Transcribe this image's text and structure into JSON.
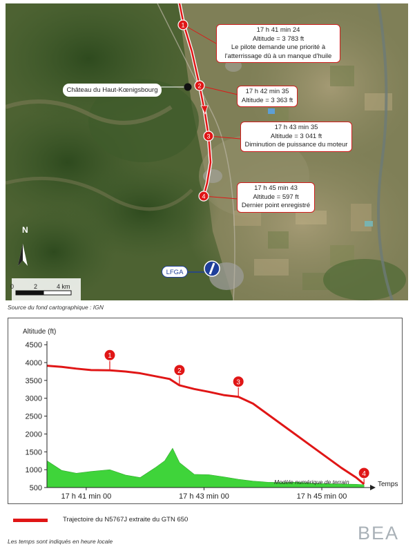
{
  "map": {
    "castle_label": "Château du Haut-Kœnigsbourg",
    "airport_label": "LFGA",
    "north_label": "N",
    "scale_labels": [
      "0",
      "2",
      "4 km"
    ],
    "source": "Source du fond cartographique : IGN",
    "waypoints": [
      {
        "num": "1",
        "lines": [
          "17 h 41 min 24",
          "Altitude = 3 783 ft",
          "Le pilote demande une priorité à",
          "l'atterrissage dû à un manque d'huile"
        ]
      },
      {
        "num": "2",
        "lines": [
          "17 h 42 min 35",
          "Altitude = 3 363 ft"
        ]
      },
      {
        "num": "3",
        "lines": [
          "17 h 43 min 35",
          "Altitude = 3 041 ft",
          "Diminution de puissance du moteur"
        ]
      },
      {
        "num": "4",
        "lines": [
          "17 h 45 min 43",
          "Altitude = 597 ft",
          "Dernier point enregistré"
        ]
      }
    ],
    "colors": {
      "track": "#e01616",
      "airport": "#1f3f9a"
    }
  },
  "chart_data": {
    "type": "line",
    "ylabel": "Altitude (ft)",
    "xlabel": "Temps",
    "ylim": [
      500,
      4600
    ],
    "yticks": [
      500,
      1000,
      1500,
      2000,
      2500,
      3000,
      3500,
      4000,
      4500
    ],
    "xticks": [
      "17 h 41 min 00",
      "17 h 43 min 00",
      "17 h 45 min 00"
    ],
    "terrain_label": "Modèle numérique de terrain",
    "series": [
      {
        "name": "Trajectoire du N5767J extraite du GTN 650",
        "color": "#e01616",
        "x": [
          "17:40:20",
          "17:40:35",
          "17:40:50",
          "17:41:05",
          "17:41:24",
          "17:41:40",
          "17:41:55",
          "17:42:10",
          "17:42:25",
          "17:42:35",
          "17:42:50",
          "17:43:05",
          "17:43:20",
          "17:43:35",
          "17:43:50",
          "17:44:05",
          "17:44:20",
          "17:44:35",
          "17:44:50",
          "17:45:05",
          "17:45:20",
          "17:45:35",
          "17:45:43"
        ],
        "y": [
          3910,
          3880,
          3830,
          3790,
          3783,
          3750,
          3700,
          3620,
          3540,
          3363,
          3260,
          3180,
          3090,
          3041,
          2850,
          2550,
          2250,
          1950,
          1650,
          1350,
          1050,
          780,
          597
        ]
      },
      {
        "color": "#3fd43a",
        "x": [
          "17:40:20",
          "17:40:35",
          "17:40:50",
          "17:41:05",
          "17:41:24",
          "17:41:40",
          "17:41:55",
          "17:42:10",
          "17:42:20",
          "17:42:28",
          "17:42:35",
          "17:42:50",
          "17:43:05",
          "17:43:20",
          "17:43:35",
          "17:43:50",
          "17:44:05",
          "17:44:20",
          "17:44:35",
          "17:44:50",
          "17:45:05",
          "17:45:20",
          "17:45:35",
          "17:45:43"
        ],
        "y": [
          1250,
          980,
          900,
          950,
          1000,
          850,
          780,
          1050,
          1250,
          1600,
          1200,
          870,
          860,
          800,
          730,
          680,
          650,
          640,
          650,
          620,
          610,
          600,
          590,
          580
        ]
      }
    ],
    "markers": [
      {
        "num": "1",
        "x": "17:41:24",
        "y": 3783
      },
      {
        "num": "2",
        "x": "17:42:35",
        "y": 3363
      },
      {
        "num": "3",
        "x": "17:43:35",
        "y": 3041
      },
      {
        "num": "4",
        "x": "17:45:43",
        "y": 597
      }
    ]
  },
  "legend": {
    "label": "Trajectoire du N5767J extraite du GTN 650"
  },
  "footnote": "Les temps sont indiqués en heure locale",
  "logo": "BEA"
}
